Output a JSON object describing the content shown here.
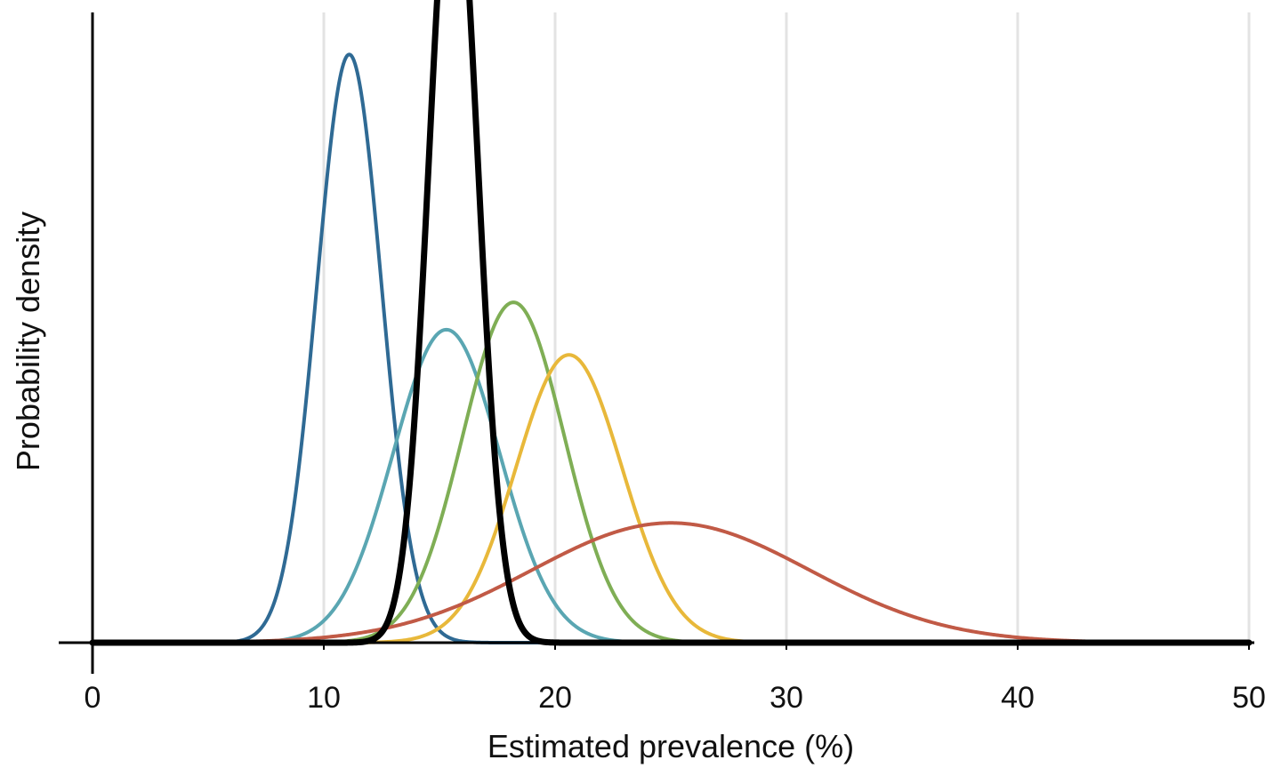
{
  "chart_data": {
    "type": "line",
    "title": "",
    "xlabel": "Estimated prevalence (%)",
    "ylabel": "Probability density",
    "xlim": [
      0,
      50
    ],
    "ylim": [
      0,
      0.3
    ],
    "x_ticks": [
      0,
      10,
      20,
      30,
      40,
      50
    ],
    "x_tick_labels": [
      "0",
      "10",
      "20",
      "30",
      "40",
      "50"
    ],
    "y_ticks_shown": false,
    "grid": "vertical",
    "legend": "none",
    "series": [
      {
        "mean": 11.1,
        "sd": 1.4,
        "peak_density": 0.28,
        "color": "#2f6a94",
        "stroke": 4
      },
      {
        "mean": 15.3,
        "sd": 2.3,
        "peak_density": 0.149,
        "color": "#5aa6b2",
        "stroke": 4
      },
      {
        "mean": 18.2,
        "sd": 2.2,
        "peak_density": 0.162,
        "color": "#7fae55",
        "stroke": 4
      },
      {
        "mean": 20.6,
        "sd": 2.3,
        "peak_density": 0.137,
        "color": "#e8b83a",
        "stroke": 4
      },
      {
        "mean": 25.0,
        "sd": 6.0,
        "peak_density": 0.057,
        "color": "#c15a46",
        "stroke": 4
      },
      {
        "mean": 15.6,
        "sd": 1.05,
        "peak_density": 0.382,
        "color": "#000000",
        "stroke": 7
      }
    ]
  }
}
